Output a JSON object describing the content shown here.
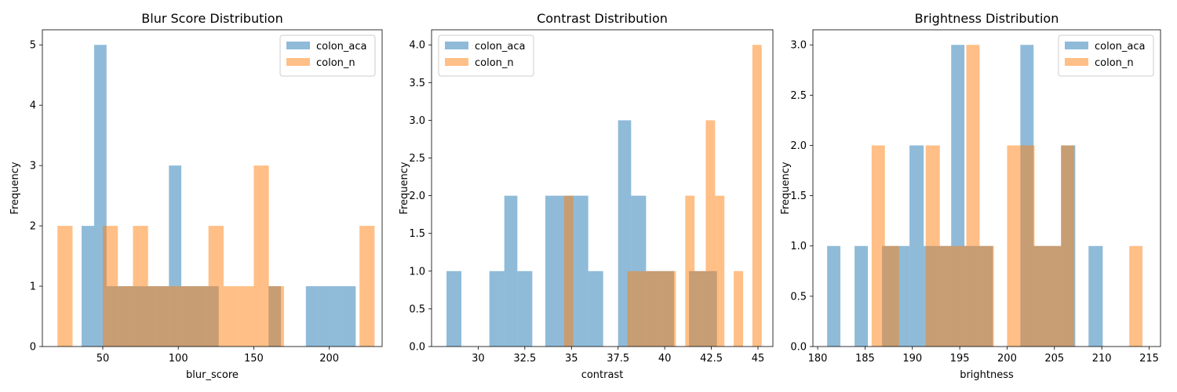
{
  "colors": {
    "colon_aca": "#1f77b4",
    "colon_n": "#ff7f0e"
  },
  "chart_data": [
    {
      "type": "bar",
      "title": "Blur Score Distribution",
      "xlabel": "blur_score",
      "ylabel": "Frequency",
      "xlim": [
        10,
        235
      ],
      "ylim": [
        0,
        5.25
      ],
      "xticks": [
        50,
        100,
        150,
        200
      ],
      "yticks": [
        0,
        1,
        2,
        3,
        4,
        5
      ],
      "ytick_format": 0,
      "legend": "top-right",
      "series": [
        {
          "name": "colon_aca",
          "bars": [
            [
              36.0,
              44.3,
              2
            ],
            [
              44.3,
              52.5,
              5
            ],
            [
              52.5,
              60.8,
              1
            ],
            [
              60.8,
              69.0,
              1
            ],
            [
              69.0,
              77.3,
              1
            ],
            [
              77.3,
              85.5,
              1
            ],
            [
              85.5,
              93.8,
              1
            ],
            [
              93.8,
              102.0,
              3
            ],
            [
              102.0,
              110.3,
              1
            ],
            [
              110.3,
              118.5,
              1
            ],
            [
              118.5,
              126.8,
              1
            ],
            [
              159.8,
              168.0,
              1
            ],
            [
              184.5,
              192.8,
              1
            ],
            [
              192.8,
              201.0,
              1
            ],
            [
              201.0,
              209.3,
              1
            ],
            [
              209.3,
              217.5,
              1
            ]
          ]
        },
        {
          "name": "colon_n",
          "bars": [
            [
              20.0,
              30.0,
              2
            ],
            [
              50.0,
              60.0,
              2
            ],
            [
              60.0,
              70.0,
              1
            ],
            [
              70.0,
              80.0,
              2
            ],
            [
              80.0,
              90.0,
              1
            ],
            [
              90.0,
              100.0,
              1
            ],
            [
              100.0,
              110.0,
              1
            ],
            [
              110.0,
              120.0,
              1
            ],
            [
              120.0,
              130.0,
              2
            ],
            [
              130.0,
              140.0,
              1
            ],
            [
              140.0,
              150.0,
              1
            ],
            [
              150.0,
              160.0,
              3
            ],
            [
              160.0,
              170.0,
              1
            ],
            [
              220.0,
              230.0,
              2
            ]
          ]
        }
      ]
    },
    {
      "type": "bar",
      "title": "Contrast Distribution",
      "xlabel": "contrast",
      "ylabel": "Frequency",
      "xlim": [
        27.5,
        45.8
      ],
      "ylim": [
        0,
        4.2
      ],
      "xticks": [
        30.0,
        32.5,
        35.0,
        37.5,
        40.0,
        42.5,
        45.0
      ],
      "yticks": [
        0.0,
        0.5,
        1.0,
        1.5,
        2.0,
        2.5,
        3.0,
        3.5,
        4.0
      ],
      "ytick_format": 1,
      "legend": "top-left",
      "series": [
        {
          "name": "colon_aca",
          "bars": [
            [
              28.3,
              29.1,
              1
            ],
            [
              30.6,
              31.4,
              1
            ],
            [
              31.4,
              32.1,
              2
            ],
            [
              32.1,
              32.9,
              1
            ],
            [
              33.6,
              34.4,
              2
            ],
            [
              34.4,
              35.2,
              2
            ],
            [
              35.2,
              35.9,
              2
            ],
            [
              35.9,
              36.7,
              1
            ],
            [
              37.5,
              38.2,
              3
            ],
            [
              38.2,
              39.0,
              2
            ],
            [
              39.0,
              39.8,
              1
            ],
            [
              39.8,
              40.5,
              1
            ],
            [
              41.3,
              42.0,
              1
            ],
            [
              42.0,
              42.8,
              1
            ]
          ]
        },
        {
          "name": "colon_n",
          "bars": [
            [
              34.6,
              35.1,
              2
            ],
            [
              38.0,
              38.6,
              1
            ],
            [
              38.6,
              39.1,
              1
            ],
            [
              39.1,
              39.6,
              1
            ],
            [
              39.6,
              40.1,
              1
            ],
            [
              40.1,
              40.6,
              1
            ],
            [
              41.1,
              41.6,
              2
            ],
            [
              41.6,
              42.2,
              1
            ],
            [
              42.2,
              42.7,
              3
            ],
            [
              42.7,
              43.2,
              2
            ],
            [
              43.7,
              44.2,
              1
            ],
            [
              44.7,
              45.2,
              4
            ]
          ]
        }
      ]
    },
    {
      "type": "bar",
      "title": "Brightness Distribution",
      "xlabel": "brightness",
      "ylabel": "Frequency",
      "xlim": [
        179.5,
        216.2
      ],
      "ylim": [
        0,
        3.15
      ],
      "xticks": [
        180,
        185,
        190,
        195,
        200,
        205,
        210,
        215
      ],
      "yticks": [
        0.0,
        0.5,
        1.0,
        1.5,
        2.0,
        2.5,
        3.0
      ],
      "ytick_format": 1,
      "legend": "top-right",
      "series": [
        {
          "name": "colon_aca",
          "bars": [
            [
              181.0,
              182.4,
              1
            ],
            [
              183.9,
              185.3,
              1
            ],
            [
              186.8,
              188.3,
              1
            ],
            [
              188.3,
              189.7,
              1
            ],
            [
              189.7,
              191.2,
              2
            ],
            [
              191.2,
              192.6,
              1
            ],
            [
              192.6,
              194.1,
              1
            ],
            [
              194.1,
              195.5,
              3
            ],
            [
              195.5,
              197.0,
              1
            ],
            [
              197.0,
              198.5,
              1
            ],
            [
              201.4,
              202.8,
              3
            ],
            [
              202.8,
              204.3,
              1
            ],
            [
              204.3,
              205.7,
              1
            ],
            [
              205.7,
              207.2,
              2
            ],
            [
              208.6,
              210.1,
              1
            ]
          ]
        },
        {
          "name": "colon_n",
          "bars": [
            [
              185.7,
              187.1,
              2
            ],
            [
              187.1,
              188.6,
              1
            ],
            [
              191.4,
              192.9,
              2
            ],
            [
              192.9,
              194.3,
              1
            ],
            [
              194.3,
              195.7,
              1
            ],
            [
              195.7,
              197.1,
              3
            ],
            [
              197.1,
              198.6,
              1
            ],
            [
              200.0,
              201.4,
              2
            ],
            [
              201.4,
              202.9,
              2
            ],
            [
              202.9,
              204.3,
              1
            ],
            [
              204.3,
              205.7,
              1
            ],
            [
              205.7,
              207.1,
              2
            ],
            [
              212.9,
              214.3,
              1
            ]
          ]
        }
      ]
    }
  ]
}
